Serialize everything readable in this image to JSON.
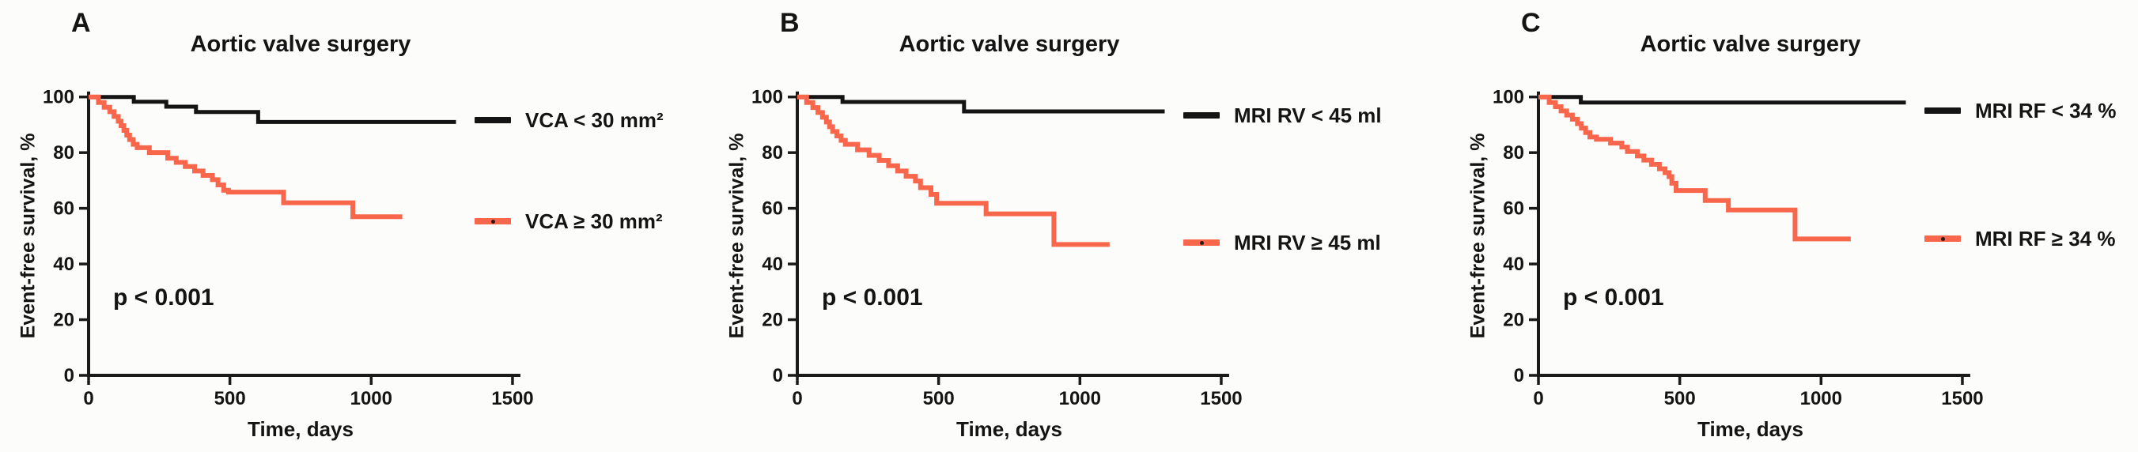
{
  "figure": {
    "background": "#fcfcfa"
  },
  "colors": {
    "axis": "#1a1a1a",
    "curve_black": "#141414",
    "curve_red": "#f8664c",
    "text": "#141414"
  },
  "chart_data": [
    {
      "type": "line",
      "panel_letter": "A",
      "title": "Aortic valve surgery",
      "xlabel": "Time, days",
      "ylabel": "Event-free survival, %",
      "p_label": "p < 0.001",
      "xlim": [
        0,
        1500
      ],
      "ylim": [
        0,
        100
      ],
      "x_ticks": [
        0,
        500,
        1000,
        1500
      ],
      "y_ticks": [
        0,
        20,
        40,
        60,
        80,
        100
      ],
      "grid": false,
      "legend_position": "right",
      "series": [
        {
          "name": "VCA < 30 mm²",
          "color": "#141414",
          "end_day": 1300,
          "steps": [
            [
              0,
              100
            ],
            [
              160,
              98.3
            ],
            [
              275,
              96.5
            ],
            [
              380,
              94.6
            ],
            [
              600,
              91
            ]
          ]
        },
        {
          "name": "VCA ≥ 30 mm²",
          "color": "#f8664c",
          "end_day": 1110,
          "steps": [
            [
              0,
              100
            ],
            [
              35,
              98
            ],
            [
              55,
              96.3
            ],
            [
              75,
              94.7
            ],
            [
              90,
              93
            ],
            [
              105,
              91.3
            ],
            [
              115,
              89.7
            ],
            [
              125,
              88
            ],
            [
              135,
              86.3
            ],
            [
              145,
              84.7
            ],
            [
              158,
              83
            ],
            [
              172,
              81.8
            ],
            [
              215,
              80
            ],
            [
              280,
              78
            ],
            [
              310,
              76.5
            ],
            [
              342,
              75
            ],
            [
              375,
              73.4
            ],
            [
              405,
              71.8
            ],
            [
              438,
              70.3
            ],
            [
              458,
              68.4
            ],
            [
              478,
              66.5
            ],
            [
              495,
              65.8
            ],
            [
              690,
              62
            ],
            [
              935,
              57
            ]
          ]
        }
      ]
    },
    {
      "type": "line",
      "panel_letter": "B",
      "title": "Aortic valve surgery",
      "xlabel": "Time, days",
      "ylabel": "Event-free survival, %",
      "p_label": "p < 0.001",
      "xlim": [
        0,
        1500
      ],
      "ylim": [
        0,
        100
      ],
      "x_ticks": [
        0,
        500,
        1000,
        1500
      ],
      "y_ticks": [
        0,
        20,
        40,
        60,
        80,
        100
      ],
      "grid": false,
      "legend_position": "right",
      "series": [
        {
          "name": "MRI RV < 45 ml",
          "color": "#141414",
          "end_day": 1300,
          "steps": [
            [
              0,
              100
            ],
            [
              160,
              98.2
            ],
            [
              590,
              94.8
            ]
          ]
        },
        {
          "name": "MRI RV ≥ 45 ml",
          "color": "#f8664c",
          "end_day": 1105,
          "steps": [
            [
              0,
              100
            ],
            [
              33,
              98
            ],
            [
              55,
              96.2
            ],
            [
              73,
              94.4
            ],
            [
              89,
              92.7
            ],
            [
              103,
              91
            ],
            [
              114,
              89.3
            ],
            [
              125,
              87.6
            ],
            [
              140,
              86
            ],
            [
              155,
              84.4
            ],
            [
              170,
              83
            ],
            [
              213,
              81
            ],
            [
              254,
              79
            ],
            [
              290,
              77.2
            ],
            [
              323,
              75.3
            ],
            [
              355,
              73.4
            ],
            [
              385,
              71.5
            ],
            [
              418,
              69.8
            ],
            [
              436,
              67.4
            ],
            [
              473,
              65
            ],
            [
              493,
              61.8
            ],
            [
              668,
              58
            ],
            [
              908,
              47
            ]
          ]
        }
      ]
    },
    {
      "type": "line",
      "panel_letter": "C",
      "title": "Aortic valve surgery",
      "xlabel": "Time, days",
      "ylabel": "Event-free survival, %",
      "p_label": "p < 0.001",
      "xlim": [
        0,
        1500
      ],
      "ylim": [
        0,
        100
      ],
      "x_ticks": [
        0,
        500,
        1000,
        1500
      ],
      "y_ticks": [
        0,
        20,
        40,
        60,
        80,
        100
      ],
      "grid": false,
      "legend_position": "right",
      "series": [
        {
          "name": "MRI RF < 34 %",
          "color": "#141414",
          "end_day": 1300,
          "steps": [
            [
              0,
              100
            ],
            [
              150,
              98
            ]
          ]
        },
        {
          "name": "MRI RF ≥ 34 %",
          "color": "#f8664c",
          "end_day": 1105,
          "steps": [
            [
              0,
              100
            ],
            [
              38,
              98
            ],
            [
              60,
              96.5
            ],
            [
              80,
              95
            ],
            [
              100,
              93.5
            ],
            [
              120,
              92
            ],
            [
              138,
              90.4
            ],
            [
              152,
              88.8
            ],
            [
              167,
              87.2
            ],
            [
              182,
              85.6
            ],
            [
              205,
              84.8
            ],
            [
              255,
              83.4
            ],
            [
              295,
              82
            ],
            [
              315,
              80.4
            ],
            [
              350,
              78.8
            ],
            [
              373,
              77.3
            ],
            [
              400,
              75.8
            ],
            [
              428,
              74.2
            ],
            [
              448,
              72.8
            ],
            [
              462,
              71.4
            ],
            [
              472,
              69
            ],
            [
              487,
              66.4
            ],
            [
              590,
              62.8
            ],
            [
              672,
              59.4
            ],
            [
              908,
              49
            ]
          ]
        }
      ]
    }
  ]
}
